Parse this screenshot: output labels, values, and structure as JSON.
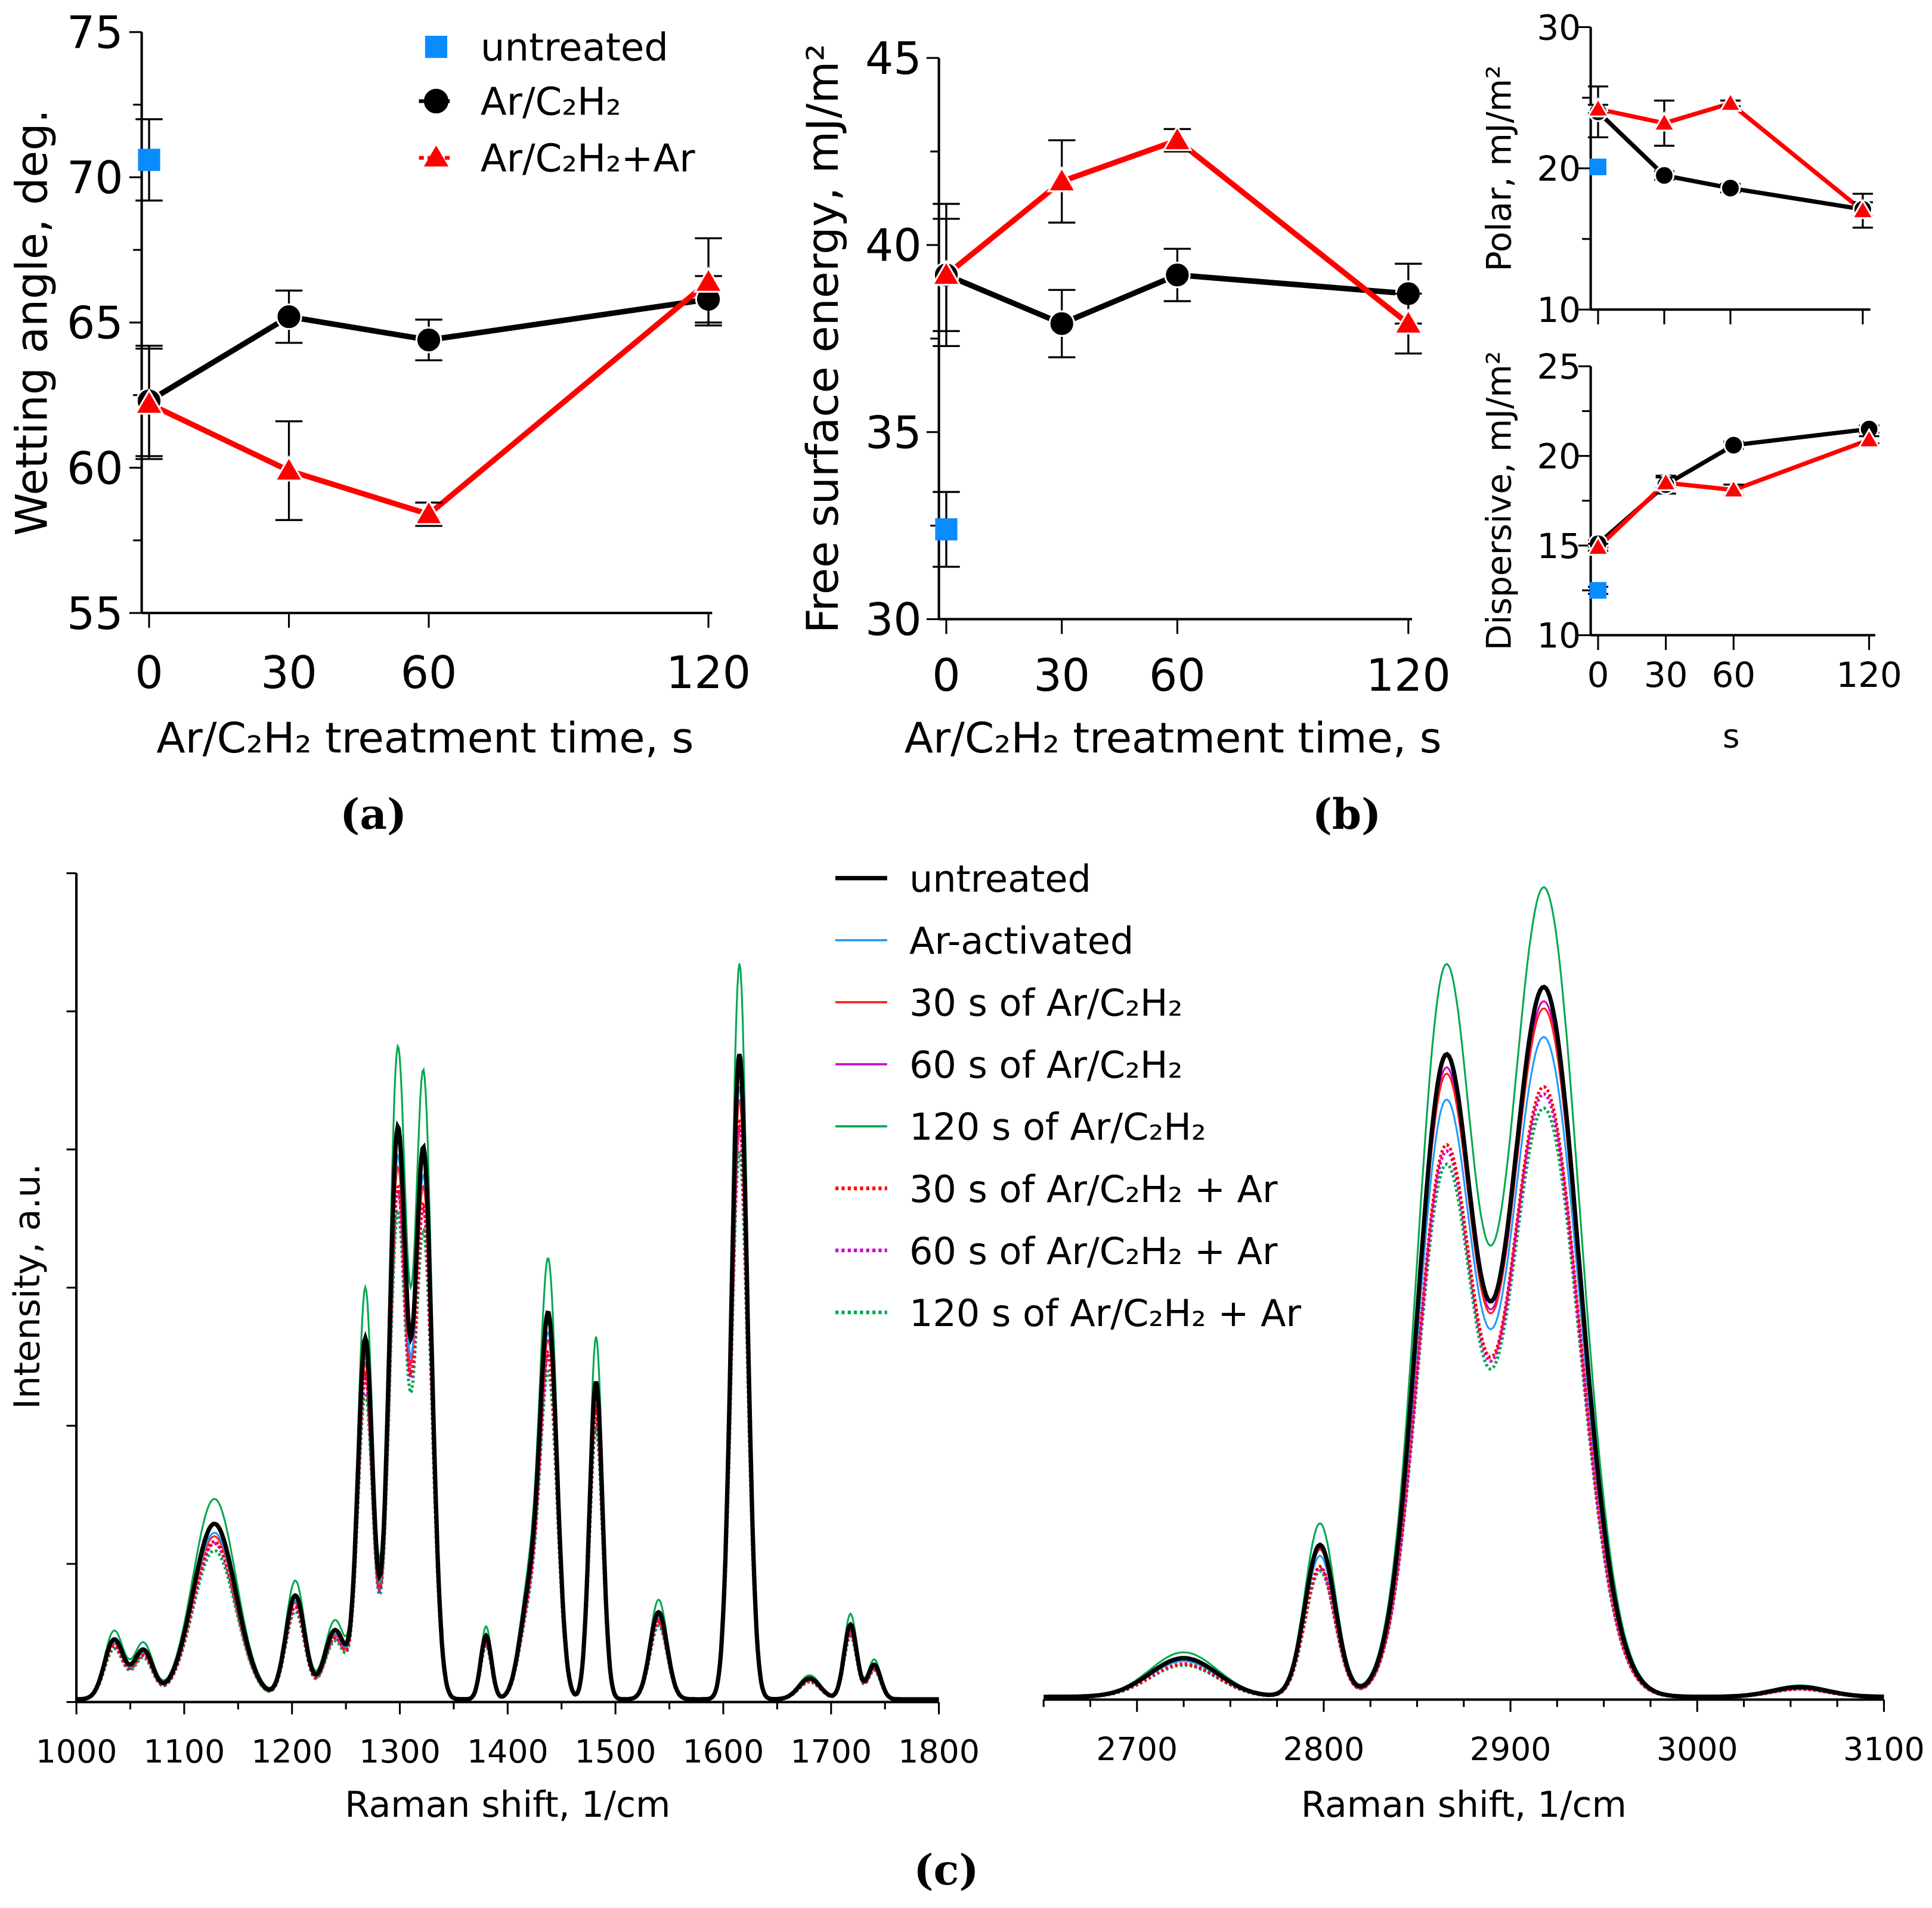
{
  "panel_labels": {
    "a": "(a)",
    "b": "(b)",
    "c": "(c)"
  },
  "colors": {
    "untreated": "#0a8cff",
    "ar_c2h2": "#000000",
    "ar_c2h2_ar": "#ff0000"
  },
  "chart_data": [
    {
      "id": "wetting",
      "type": "scatter",
      "ylabel": "Wetting angle, deg.",
      "xlabel": "Ar/C₂H₂ treatment time, s",
      "xticks": [
        0,
        30,
        60,
        120
      ],
      "yticks": [
        55,
        60,
        65,
        70,
        75
      ],
      "ylim": [
        55,
        75
      ],
      "grid": false,
      "legend": "top-right",
      "series": [
        {
          "name": "untreated",
          "marker": "square",
          "x": [
            0
          ],
          "y": [
            70.6
          ],
          "err": [
            1.4
          ]
        },
        {
          "name": "Ar/C₂H₂",
          "marker": "circle",
          "x": [
            0,
            30,
            60,
            120
          ],
          "y": [
            62.3,
            65.2,
            64.4,
            65.8
          ],
          "err": [
            1.9,
            0.9,
            0.7,
            0.8
          ]
        },
        {
          "name": "Ar/C₂H₂+Ar",
          "marker": "triangle",
          "x": [
            0,
            30,
            60,
            120
          ],
          "y": [
            62.2,
            59.9,
            58.4,
            66.4
          ],
          "err": [
            1.9,
            1.7,
            0.4,
            1.5
          ]
        }
      ]
    },
    {
      "id": "energy",
      "type": "scatter",
      "ylabel": "Free surface energy, mJ/m²",
      "xlabel": "Ar/C₂H₂ treatment time, s",
      "xticks": [
        0,
        30,
        60,
        120
      ],
      "yticks": [
        30,
        35,
        40,
        45
      ],
      "ylim": [
        30,
        45
      ],
      "grid": false,
      "series": [
        {
          "name": "untreated",
          "marker": "square",
          "x": [
            0
          ],
          "y": [
            32.4
          ],
          "err": [
            1.0
          ]
        },
        {
          "name": "Ar/C₂H₂",
          "marker": "circle",
          "x": [
            0,
            30,
            60,
            120
          ],
          "y": [
            39.2,
            37.9,
            39.2,
            38.7
          ],
          "err": [
            1.9,
            0.9,
            0.7,
            0.8
          ]
        },
        {
          "name": "Ar/C₂H₂+Ar",
          "marker": "triangle",
          "x": [
            0,
            30,
            60,
            120
          ],
          "y": [
            39.2,
            41.7,
            42.8,
            37.9
          ],
          "err": [
            1.5,
            1.1,
            0.3,
            0.8
          ]
        }
      ]
    },
    {
      "id": "polar",
      "type": "scatter",
      "ylabel": "Polar, mJ/m²",
      "xlabel": "",
      "xticks": [
        0,
        30,
        60,
        120
      ],
      "yticks": [
        10,
        20,
        30
      ],
      "ylim": [
        10,
        30
      ],
      "grid": false,
      "series": [
        {
          "name": "untreated",
          "marker": "square",
          "x": [
            0
          ],
          "y": [
            20.1
          ],
          "err": [
            0
          ]
        },
        {
          "name": "Ar/C₂H₂",
          "marker": "circle",
          "x": [
            0,
            30,
            60,
            120
          ],
          "y": [
            24.0,
            19.5,
            18.6,
            17.1
          ],
          "err": [
            1.8,
            0.3,
            0.3,
            0.5
          ]
        },
        {
          "name": "Ar/C₂H₂+Ar",
          "marker": "triangle",
          "x": [
            0,
            30,
            60,
            120
          ],
          "y": [
            24.2,
            23.2,
            24.6,
            17.0
          ],
          "err": [
            0.3,
            1.6,
            0.2,
            1.2
          ]
        }
      ]
    },
    {
      "id": "dispersive",
      "type": "scatter",
      "ylabel": "Dispersive, mJ/m²",
      "xlabel": "s",
      "xticks": [
        0,
        30,
        60,
        120
      ],
      "yticks": [
        10,
        15,
        20,
        25
      ],
      "ylim": [
        10,
        25
      ],
      "grid": false,
      "series": [
        {
          "name": "untreated",
          "marker": "square",
          "x": [
            0
          ],
          "y": [
            12.5
          ],
          "err": [
            0.2
          ]
        },
        {
          "name": "Ar/C₂H₂",
          "marker": "circle",
          "x": [
            0,
            30,
            60,
            120
          ],
          "y": [
            15.1,
            18.4,
            20.6,
            21.5
          ],
          "err": [
            0.2,
            0.5,
            0.2,
            0.2
          ]
        },
        {
          "name": "Ar/C₂H₂+Ar",
          "marker": "triangle",
          "x": [
            0,
            30,
            60,
            120
          ],
          "y": [
            14.9,
            18.5,
            18.1,
            20.9
          ],
          "err": [
            0.2,
            0.3,
            0.3,
            0.2
          ]
        }
      ]
    },
    {
      "id": "raman",
      "type": "line",
      "ylabel": "Intensity, a.u.",
      "xlabel": "Raman shift, 1/cm",
      "xticks_left": [
        1000,
        1100,
        1200,
        1300,
        1400,
        1500,
        1600,
        1700,
        1800
      ],
      "xlim_left": [
        1000,
        1800
      ],
      "xticks_right": [
        2700,
        2800,
        2900,
        3000,
        3100
      ],
      "xlim_right": [
        2650,
        3100
      ],
      "ylim": [
        0,
        6
      ],
      "legend": "top-center",
      "peaks_left": [
        [
          1035,
          0.43
        ],
        [
          1062,
          0.35
        ],
        [
          1128,
          1.27
        ],
        [
          1203,
          0.75
        ],
        [
          1240,
          0.5
        ],
        [
          1268,
          2.6
        ],
        [
          1298,
          4.1
        ],
        [
          1322,
          3.95
        ],
        [
          1380,
          0.46
        ],
        [
          1420,
          0.7
        ],
        [
          1438,
          2.7
        ],
        [
          1482,
          2.3
        ],
        [
          1540,
          0.63
        ],
        [
          1615,
          4.67
        ],
        [
          1680,
          0.15
        ],
        [
          1718,
          0.54
        ],
        [
          1740,
          0.25
        ]
      ],
      "peaks_right": [
        [
          2725,
          0.28
        ],
        [
          2798,
          1.1
        ],
        [
          2865,
          4.54
        ],
        [
          2918,
          5.13
        ],
        [
          3055,
          0.07
        ]
      ],
      "series": [
        {
          "name": "untreated",
          "color": "#000000",
          "style": "solid-bold",
          "scale_left": 1.0,
          "scale_right": 1.0
        },
        {
          "name": "Ar-activated",
          "color": "#1e9bff",
          "style": "solid",
          "scale_left": 0.95,
          "scale_right": 0.93
        },
        {
          "name": "30 s of Ar/C₂H₂",
          "color": "#ff2020",
          "style": "solid",
          "scale_left": 0.93,
          "scale_right": 0.97
        },
        {
          "name": "60 s of Ar/C₂H₂",
          "color": "#cc00cc",
          "style": "solid",
          "scale_left": 1.0,
          "scale_right": 0.98
        },
        {
          "name": "120 s of Ar/C₂H₂",
          "color": "#00a84f",
          "style": "solid",
          "scale_left": 1.14,
          "scale_right": 1.14
        },
        {
          "name": "30 s of Ar/C₂H₂ + Ar",
          "color": "#ff0000",
          "style": "dotted",
          "scale_left": 0.9,
          "scale_right": 0.86
        },
        {
          "name": "60 s of Ar/C₂H₂ + Ar",
          "color": "#cc00cc",
          "style": "dotted",
          "scale_left": 0.89,
          "scale_right": 0.85
        },
        {
          "name": "120 s of Ar/C₂H₂ + Ar",
          "color": "#00a84f",
          "style": "dotted",
          "scale_left": 0.85,
          "scale_right": 0.83
        }
      ]
    }
  ]
}
